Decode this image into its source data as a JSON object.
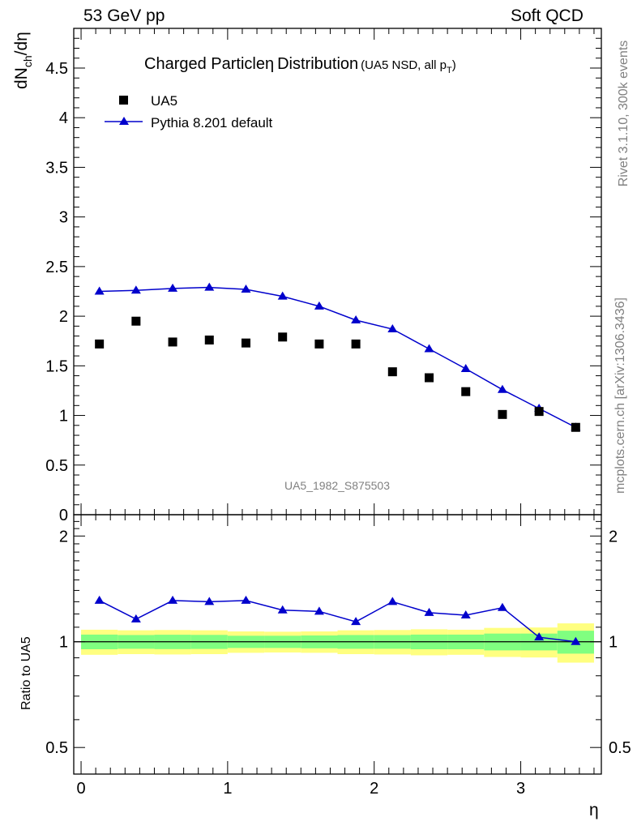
{
  "header": {
    "left_label": "53 GeV pp",
    "right_label": "Soft QCD"
  },
  "side_labels": {
    "generator": "Rivet 3.1.10,  300k events",
    "source": "mcplots.cern.ch [arXiv:1306.3436]"
  },
  "colors": {
    "mc_line": "#0000cc",
    "band_inner": "#80ff80",
    "band_outer": "#ffff80",
    "data_marker": "#000000",
    "watermark": "#808080"
  },
  "chart_data": [
    {
      "type": "scatter",
      "title": "Charged Particle",
      "title_symbol": "η",
      "title_rest": "Distribution",
      "subtitle_prefix": "(UA5 NSD, all p",
      "subtitle_sub": "T",
      "subtitle_suffix": ")",
      "ylabel_main": "dN",
      "ylabel_sub": "ch",
      "ylabel_rest": "/dη",
      "ylim": [
        0,
        4.9
      ],
      "yticks": [
        "0",
        "0.5",
        "1",
        "1.5",
        "2",
        "2.5",
        "3",
        "3.5",
        "4",
        "4.5"
      ],
      "legend_position": "top-left",
      "watermark": "UA5_1982_S875503",
      "x": [
        0.125,
        0.375,
        0.625,
        0.875,
        1.125,
        1.375,
        1.625,
        1.875,
        2.125,
        2.375,
        2.625,
        2.875,
        3.125,
        3.375
      ],
      "series": [
        {
          "name": "UA5",
          "marker": "square",
          "values": [
            1.72,
            1.95,
            1.74,
            1.76,
            1.73,
            1.79,
            1.72,
            1.72,
            1.44,
            1.38,
            1.24,
            1.01,
            1.04,
            0.88
          ]
        },
        {
          "name": "Pythia 8.201 default",
          "marker": "triangle",
          "values": [
            2.25,
            2.26,
            2.28,
            2.29,
            2.27,
            2.2,
            2.1,
            1.96,
            1.87,
            1.67,
            1.47,
            1.26,
            1.07,
            0.88
          ]
        }
      ]
    },
    {
      "type": "line",
      "ylabel": "Ratio to UA5",
      "ylog": true,
      "ylim": [
        0.42,
        2.3
      ],
      "yticks": [
        "0.5",
        "1",
        "2"
      ],
      "xlabel": "η",
      "xlim": [
        -0.05,
        3.55
      ],
      "xticks": [
        "0",
        "1",
        "2",
        "3"
      ],
      "x_edges": [
        0,
        0.25,
        0.5,
        0.75,
        1.0,
        1.25,
        1.5,
        1.75,
        2.0,
        2.25,
        2.5,
        2.75,
        3.0,
        3.25,
        3.5
      ],
      "band_inner_halfwidth": [
        0.048,
        0.045,
        0.047,
        0.046,
        0.04,
        0.04,
        0.042,
        0.045,
        0.045,
        0.048,
        0.048,
        0.055,
        0.055,
        0.075
      ],
      "band_outer_halfwidth": [
        0.082,
        0.078,
        0.08,
        0.078,
        0.07,
        0.068,
        0.07,
        0.078,
        0.08,
        0.085,
        0.082,
        0.095,
        0.098,
        0.128
      ],
      "series": [
        {
          "name": "Pythia 8.201 default",
          "values": [
            1.31,
            1.16,
            1.31,
            1.3,
            1.31,
            1.23,
            1.22,
            1.14,
            1.3,
            1.21,
            1.19,
            1.25,
            1.03,
            1.0
          ]
        }
      ]
    }
  ]
}
